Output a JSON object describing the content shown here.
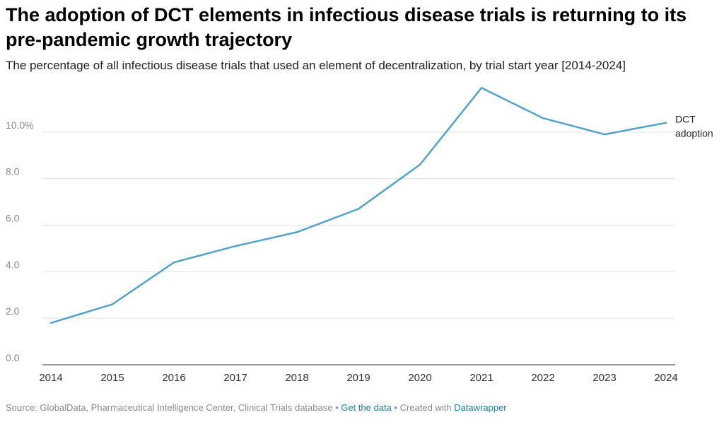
{
  "title": "The adoption of DCT elements in infectious disease trials is returning to its pre-pandemic growth trajectory",
  "subtitle": "The percentage of all infectious disease trials that used an element of decentralization, by trial start year [2014-2024]",
  "chart_data": {
    "type": "line",
    "title": "The adoption of DCT elements in infectious disease trials is returning to its pre-pandemic growth trajectory",
    "subtitle": "The percentage of all infectious disease trials that used an element of decentralization, by trial start year [2014-2024]",
    "xlabel": "",
    "ylabel": "",
    "categories": [
      "2014",
      "2015",
      "2016",
      "2017",
      "2018",
      "2019",
      "2020",
      "2021",
      "2022",
      "2023",
      "2024"
    ],
    "series": [
      {
        "name": "DCT adoption",
        "label_lines": [
          "DCT",
          "adoption"
        ],
        "values": [
          1.8,
          2.6,
          4.4,
          5.1,
          5.7,
          6.7,
          8.6,
          11.9,
          10.6,
          9.9,
          10.4
        ],
        "color": "#52a2c9"
      }
    ],
    "ylim": [
      0,
      12
    ],
    "y_ticks": [
      0,
      2,
      4,
      6,
      8,
      10
    ],
    "y_tick_labels": [
      "0.0",
      "2.0",
      "4.0",
      "6.0",
      "8.0",
      "10.0%"
    ],
    "grid": true,
    "legend": "direct-label-right"
  },
  "footer": {
    "source_text": "Source: GlobalData, Pharmaceutical Intelligence Center, Clinical Trials database",
    "separator": " • ",
    "get_data_label": "Get the data",
    "created_with_text": "Created with ",
    "datawrapper_label": "Datawrapper"
  },
  "colors": {
    "line": "#52a2c9",
    "grid": "#e2e2e2",
    "axis": "#333333",
    "link": "#1d81a2"
  }
}
